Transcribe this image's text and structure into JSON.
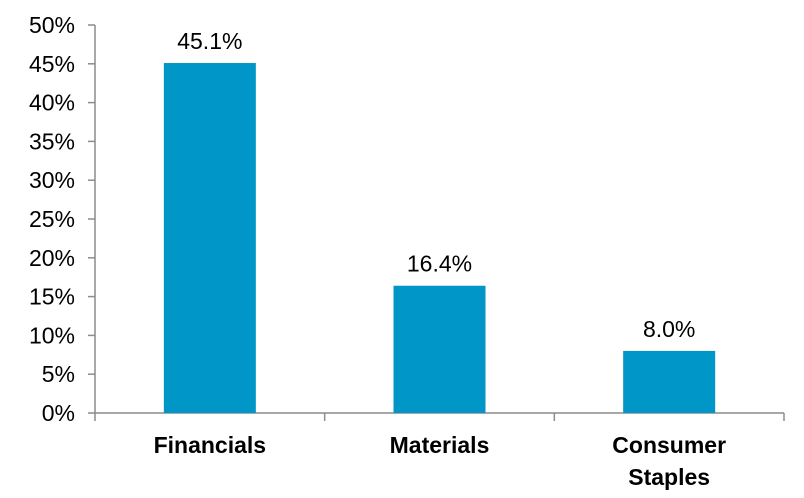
{
  "chart_data": {
    "type": "bar",
    "categories": [
      "Financials",
      "Materials",
      "Consumer Staples"
    ],
    "category_lines": [
      [
        "Financials"
      ],
      [
        "Materials"
      ],
      [
        "Consumer",
        "Staples"
      ]
    ],
    "values": [
      45.1,
      16.4,
      8.0
    ],
    "data_labels": [
      "45.1%",
      "16.4%",
      "8.0%"
    ],
    "y_ticks": [
      0,
      5,
      10,
      15,
      20,
      25,
      30,
      35,
      40,
      45,
      50
    ],
    "y_tick_labels": [
      "0%",
      "5%",
      "10%",
      "15%",
      "20%",
      "25%",
      "30%",
      "35%",
      "40%",
      "45%",
      "50%"
    ],
    "ylim": [
      0,
      50
    ],
    "grid": false,
    "legend": "none",
    "bar_color": "#0096c8",
    "axis_color": "#8c8c8c"
  }
}
